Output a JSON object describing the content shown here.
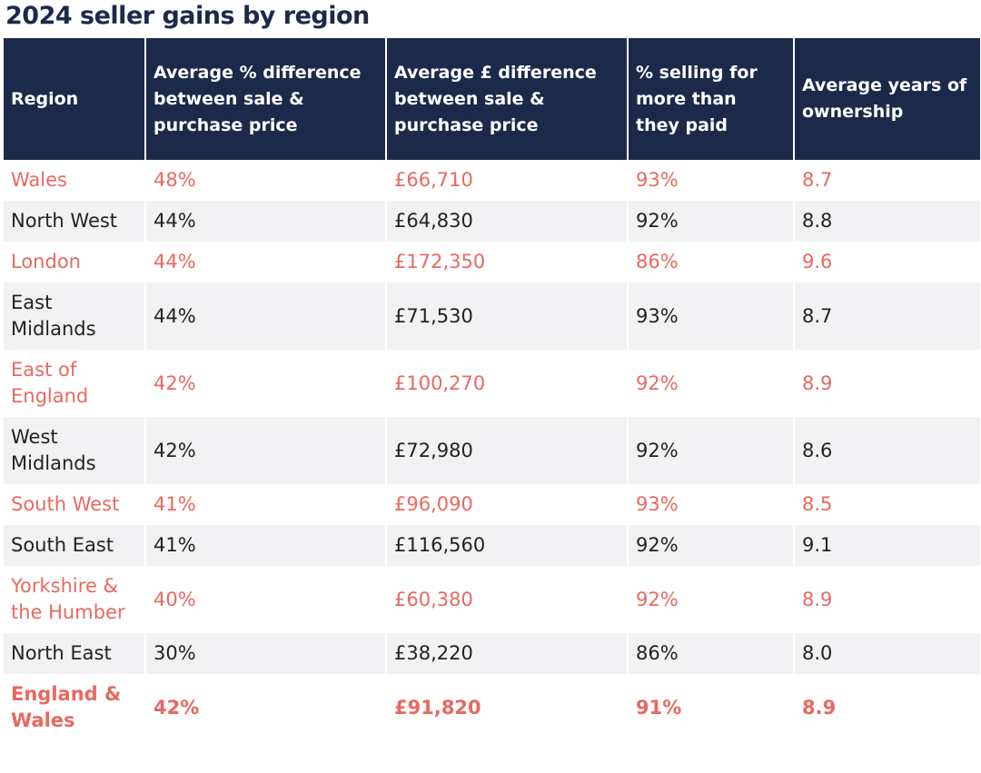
{
  "title": "2024 seller gains by region",
  "columns": [
    "Region",
    "Average % difference between sale & purchase price",
    "Average £ difference between sale & purchase price",
    "% selling for more than they paid",
    "Average years of ownership"
  ],
  "rows": [
    [
      "Wales",
      "48%",
      "£66,710",
      "93%",
      "8.7"
    ],
    [
      "North West",
      "44%",
      "£64,830",
      "92%",
      "8.8"
    ],
    [
      "London",
      "44%",
      "£172,350",
      "86%",
      "9.6"
    ],
    [
      "East Midlands",
      "44%",
      "£71,530",
      "93%",
      "8.7"
    ],
    [
      "East of England",
      "42%",
      "£100,270",
      "92%",
      "8.9"
    ],
    [
      "West Midlands",
      "42%",
      "£72,980",
      "92%",
      "8.6"
    ],
    [
      "South West",
      "41%",
      "£96,090",
      "93%",
      "8.5"
    ],
    [
      "South East",
      "41%",
      "£116,560",
      "92%",
      "9.1"
    ],
    [
      "Yorkshire & the Humber",
      "40%",
      "£60,380",
      "92%",
      "8.9"
    ],
    [
      "North East",
      "30%",
      "£38,220",
      "86%",
      "8.0"
    ]
  ],
  "total": [
    "England & Wales",
    "42%",
    "£91,820",
    "91%",
    "8.9"
  ],
  "colors": {
    "header_bg": "#1c2a4a",
    "accent": "#e8695f",
    "stripe": "#f2f2f4",
    "text": "#222222"
  }
}
